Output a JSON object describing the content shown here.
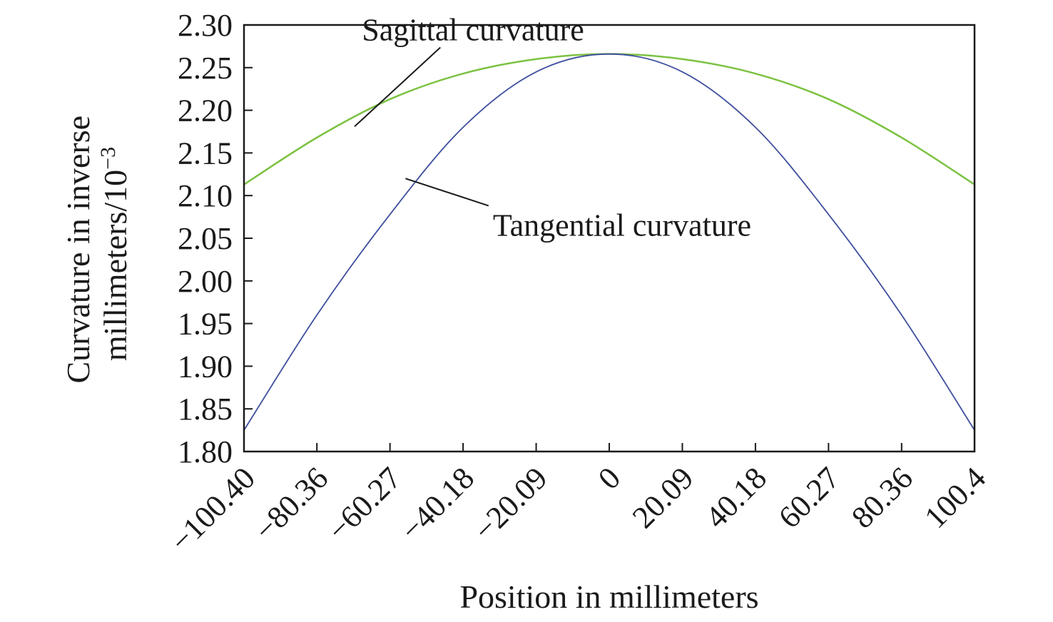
{
  "chart_data": {
    "type": "line",
    "title": "",
    "xlabel": "Position in millimeters",
    "ylabel_lines": [
      "Curvature in inverse",
      "millimeters/10"
    ],
    "ylabel_superscript": "−3",
    "xlim": [
      -100.4,
      100.4
    ],
    "ylim": [
      1.8,
      2.3
    ],
    "x_ticks": [
      -100.4,
      -80.36,
      -60.27,
      -40.18,
      -20.09,
      0,
      20.09,
      40.18,
      60.27,
      80.36,
      100.4
    ],
    "x_tick_labels": [
      "−100.40",
      "−80.36",
      "−60.27",
      "−40.18",
      "−20.09",
      "0",
      "20.09",
      "40.18",
      "60.27",
      "80.36",
      "100.4"
    ],
    "y_ticks": [
      1.8,
      1.85,
      1.9,
      1.95,
      2.0,
      2.05,
      2.1,
      2.15,
      2.2,
      2.25,
      2.3
    ],
    "y_tick_labels": [
      "1.80",
      "1.85",
      "1.90",
      "1.95",
      "2.00",
      "2.05",
      "2.10",
      "2.15",
      "2.20",
      "2.25",
      "2.30"
    ],
    "grid": false,
    "x": [
      -100.4,
      -80.36,
      -60.27,
      -40.18,
      -20.09,
      0,
      20.09,
      40.18,
      60.27,
      80.36,
      100.4
    ],
    "series": [
      {
        "label": "Sagittal curvature",
        "color": "#7cc242",
        "values": [
          2.113,
          2.168,
          2.213,
          2.243,
          2.26,
          2.266,
          2.26,
          2.243,
          2.213,
          2.168,
          2.113
        ],
        "annotation_text_at": [
          -68,
          2.282
        ],
        "annotation_arrow_at": [
          -70,
          2.181
        ]
      },
      {
        "label": "Tangential curvature",
        "color": "#3f4f9e",
        "values": [
          1.825,
          1.96,
          2.078,
          2.18,
          2.245,
          2.266,
          2.245,
          2.18,
          2.078,
          1.96,
          1.825
        ],
        "annotation_text_at": [
          -32,
          2.053
        ],
        "annotation_arrow_at": [
          -56,
          2.12
        ]
      }
    ]
  }
}
